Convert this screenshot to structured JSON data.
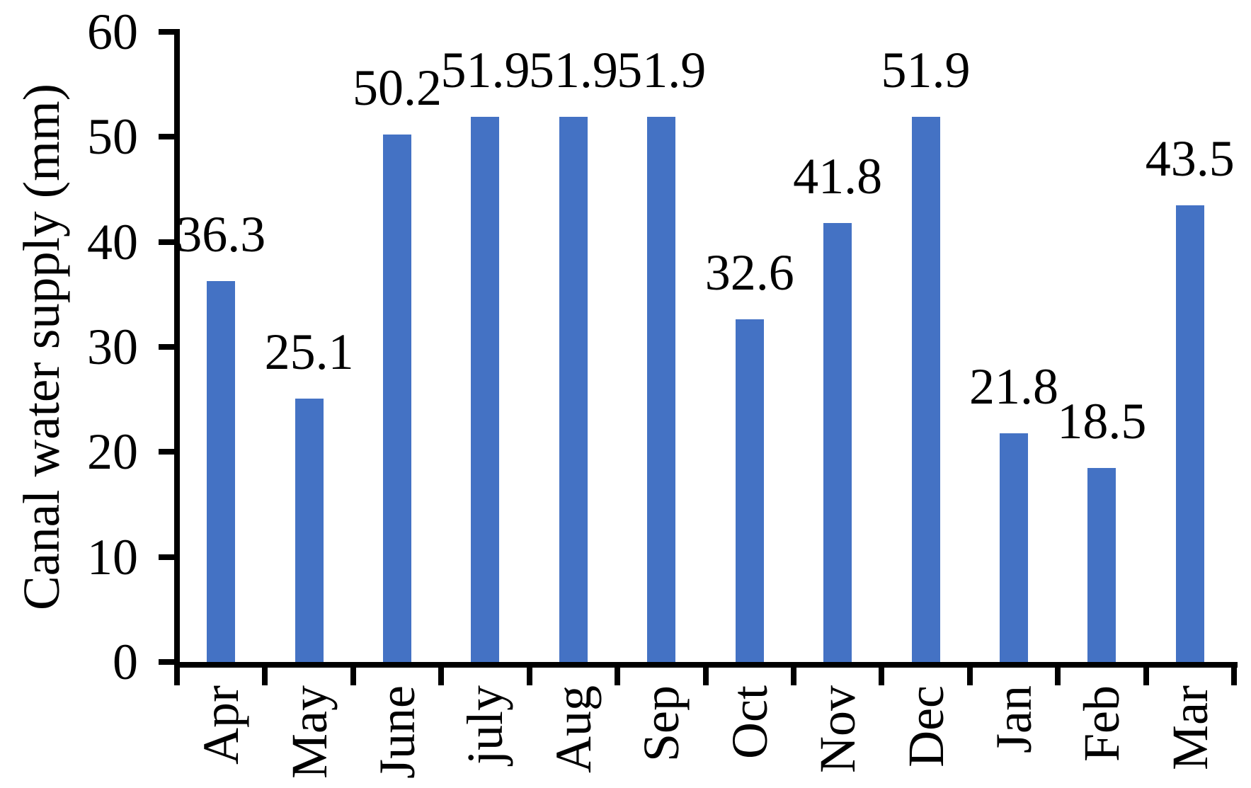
{
  "chart_data": {
    "type": "bar",
    "title": "",
    "ylabel": "Canal water supply (mm)",
    "xlabel": "",
    "categories": [
      "Apr",
      "May",
      "June",
      "july",
      "Aug",
      "Sep",
      "Oct",
      "Nov",
      "Dec",
      "Jan",
      "Feb",
      "Mar"
    ],
    "values": [
      36.3,
      25.1,
      50.2,
      51.9,
      51.9,
      51.9,
      32.6,
      41.8,
      51.9,
      21.8,
      18.5,
      43.5
    ],
    "value_labels": [
      "36.3",
      "25.1",
      "50.2",
      "51.9",
      "51.9",
      "51.9",
      "32.6",
      "41.8",
      "51.9",
      "21.8",
      "18.5",
      "43.5"
    ],
    "ylim": [
      0,
      60
    ],
    "yticks": [
      0,
      10,
      20,
      30,
      40,
      50,
      60
    ],
    "grid": "off",
    "legend": "none",
    "bar_color": "#4472C4",
    "axis_color": "#000000",
    "text_color": "#000000",
    "background": "#FFFFFF"
  }
}
